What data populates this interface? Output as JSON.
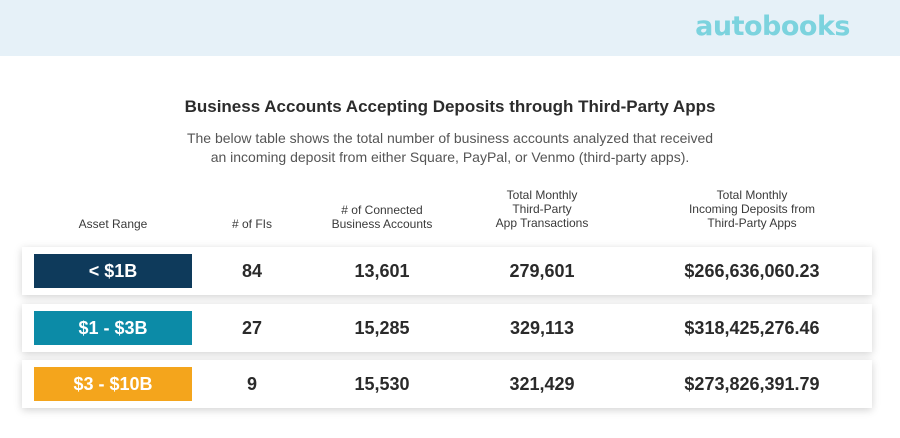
{
  "brand": {
    "logo_text": "autobooks",
    "logo_color": "#7cd3de"
  },
  "title": "Business Accounts Accepting Deposits through Third-Party Apps",
  "subtitle": {
    "line1": "The below table shows the total number of business accounts analyzed that received",
    "line2": "an incoming deposit from either Square, PayPal, or Venmo (third-party apps)."
  },
  "table": {
    "headers": {
      "asset_range": "Asset Range",
      "num_fis": "# of FIs",
      "accounts": [
        "# of Connected",
        "Business Accounts"
      ],
      "transactions": [
        "Total Monthly",
        "Third-Party",
        "App Transactions"
      ],
      "deposits": [
        "Total Monthly",
        "Incoming Deposits from",
        "Third-Party Apps"
      ]
    },
    "rows": [
      {
        "asset_range": "< $1B",
        "num_fis": "84",
        "accounts": "13,601",
        "transactions": "279,601",
        "deposits": "$266,636,060.23",
        "color": "#0e3a5b"
      },
      {
        "asset_range": "$1 - $3B",
        "num_fis": "27",
        "accounts": "15,285",
        "transactions": "329,113",
        "deposits": "$318,425,276.46",
        "color": "#0c8ba7"
      },
      {
        "asset_range": "$3 - $10B",
        "num_fis": "9",
        "accounts": "15,530",
        "transactions": "321,429",
        "deposits": "$273,826,391.79",
        "color": "#f4a51c"
      }
    ]
  }
}
